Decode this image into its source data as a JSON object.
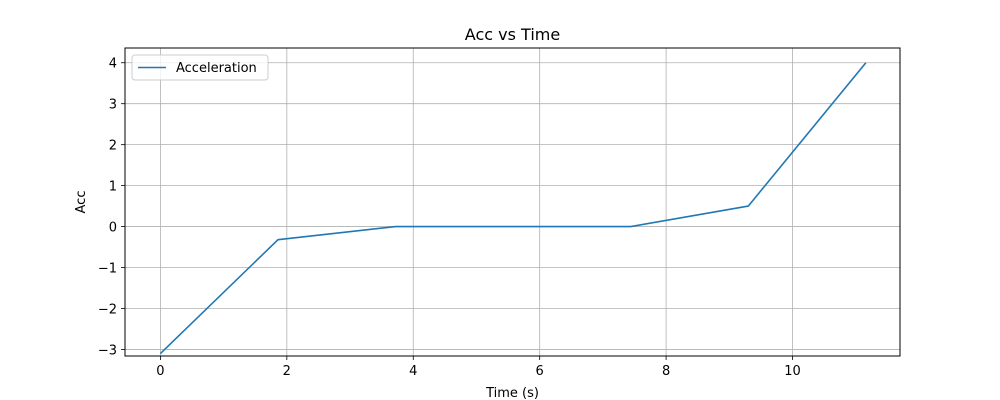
{
  "chart_data": {
    "type": "line",
    "title": "Acc vs Time",
    "xlabel": "Time (s)",
    "ylabel": "Acc",
    "xlim": [
      -0.56,
      11.7
    ],
    "ylim": [
      -3.16,
      4.36
    ],
    "xticks": [
      0,
      2,
      4,
      6,
      8,
      10
    ],
    "xtick_labels": [
      "0",
      "2",
      "4",
      "6",
      "8",
      "10"
    ],
    "yticks": [
      -3,
      -2,
      -1,
      0,
      1,
      2,
      3,
      4
    ],
    "ytick_labels": [
      "−3",
      "−2",
      "−1",
      "0",
      "1",
      "2",
      "3",
      "4"
    ],
    "grid": true,
    "legend_position": "upper-left",
    "series": [
      {
        "name": "Acceleration",
        "color": "#1f77b4",
        "x": [
          0,
          1.86,
          3.72,
          5.58,
          7.44,
          9.3,
          11.16
        ],
        "y": [
          -3.1,
          -0.32,
          0.0,
          0.0,
          0.0,
          0.5,
          4.0
        ]
      }
    ]
  }
}
